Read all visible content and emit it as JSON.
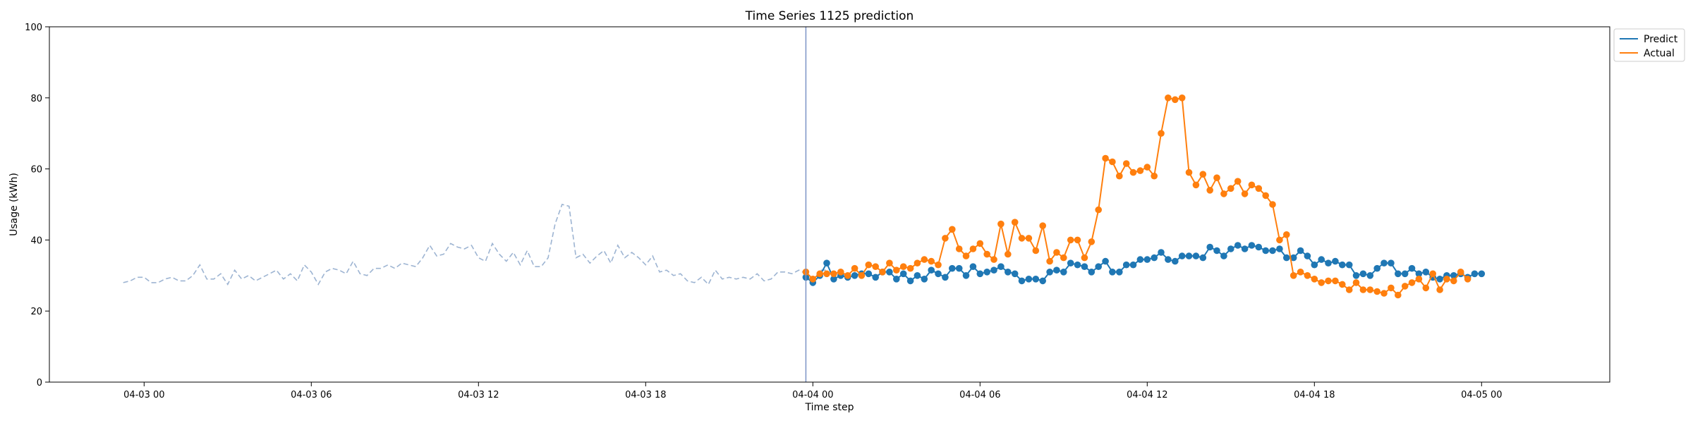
{
  "chart_data": {
    "type": "line",
    "title": "Time Series 1125 prediction",
    "xlabel": "Time step",
    "ylabel": "Usage (kWh)",
    "ylim": [
      0,
      100
    ],
    "yticks": [
      "0",
      "20",
      "40",
      "60",
      "80",
      "100"
    ],
    "xlim": [
      "2025-04-02 20:36",
      "2025-04-05 04:36"
    ],
    "xticks": [
      {
        "t": "2025-04-03 00:00",
        "label": "04-03 00"
      },
      {
        "t": "2025-04-03 06:00",
        "label": "04-03 06"
      },
      {
        "t": "2025-04-03 12:00",
        "label": "04-03 12"
      },
      {
        "t": "2025-04-03 18:00",
        "label": "04-03 18"
      },
      {
        "t": "2025-04-04 00:00",
        "label": "04-04 00"
      },
      {
        "t": "2025-04-04 06:00",
        "label": "04-04 06"
      },
      {
        "t": "2025-04-04 12:00",
        "label": "04-04 12"
      },
      {
        "t": "2025-04-04 18:00",
        "label": "04-04 18"
      },
      {
        "t": "2025-04-05 00:00",
        "label": "04-05 00"
      }
    ],
    "grid": false,
    "legend_position": "top-right",
    "split_time": "2025-04-03 23:45",
    "history": {
      "start": "2025-04-02 23:15",
      "interval_minutes": 15,
      "color": "#9db4d2",
      "style": "dashed",
      "values": [
        28,
        28.5,
        29.5,
        29.5,
        28,
        28,
        29,
        29.5,
        28.5,
        28.5,
        30,
        33,
        29,
        29,
        30.5,
        27.5,
        31.5,
        29,
        30,
        28.5,
        29.5,
        30.5,
        31.5,
        29,
        30.5,
        28.5,
        33,
        31,
        27.5,
        31,
        32,
        31.5,
        30.5,
        34,
        30.5,
        30,
        32,
        32,
        33,
        32,
        33.5,
        33,
        32.5,
        35,
        38.5,
        35.5,
        36,
        39,
        38,
        37.5,
        38.5,
        35,
        34,
        39,
        36,
        34,
        36.5,
        33,
        37,
        32.5,
        32.5,
        35,
        44.5,
        50,
        49.5,
        35,
        36,
        33.5,
        35.5,
        37,
        33.5,
        38.5,
        35,
        36.5,
        35,
        33,
        35.5,
        31,
        31.5,
        30,
        30.5,
        28.5,
        28,
        29.5,
        27.5,
        31.5,
        29,
        29.5,
        29,
        29.5,
        29,
        30.5,
        28.5,
        29,
        31,
        31,
        30.5,
        31.5,
        30.5,
        28,
        31.5,
        31.5
      ]
    },
    "forecast": {
      "start": "2025-04-03 23:45",
      "interval_minutes": 15,
      "series": [
        {
          "name": "Predict",
          "color": "#1f77b4",
          "values": [
            29.5,
            28,
            30,
            33.5,
            29,
            30,
            29.5,
            30,
            30.5,
            30.5,
            29.5,
            31,
            31,
            29,
            30.5,
            28.5,
            30,
            29,
            31.5,
            30.5,
            29.5,
            32,
            32,
            30,
            32.5,
            30.5,
            31,
            31.5,
            32.5,
            31,
            30.5,
            28.5,
            29,
            29,
            28.5,
            31,
            31.5,
            31,
            33.5,
            33,
            32.5,
            31,
            32.5,
            34,
            31,
            31,
            33,
            33,
            34.5,
            34.5,
            35,
            36.5,
            34.5,
            34,
            35.5,
            35.5,
            35.5,
            35,
            38,
            37,
            35.5,
            37.5,
            38.5,
            37.5,
            38.5,
            38,
            37,
            37,
            37.5,
            35,
            35,
            37,
            35.5,
            33,
            34.5,
            33.5,
            34,
            33,
            33,
            30,
            30.5,
            30,
            32,
            33.5,
            33.5,
            30.5,
            30.5,
            32,
            30.5,
            31,
            29.5,
            29,
            30,
            30,
            30.5,
            29.5,
            30.5,
            30.5
          ]
        },
        {
          "name": "Actual",
          "color": "#ff7f0e",
          "values": [
            31,
            29,
            30.5,
            30.5,
            30.5,
            31,
            30,
            32,
            30,
            33,
            32.5,
            31,
            33.5,
            31.5,
            32.5,
            32,
            33.5,
            34.5,
            34,
            33,
            40.5,
            43,
            37.5,
            35.5,
            37.5,
            39,
            36,
            34.5,
            44.5,
            36,
            45,
            40.5,
            40.5,
            37,
            44,
            34,
            36.5,
            35,
            40,
            40,
            35,
            39.5,
            48.5,
            63,
            62,
            58,
            61.5,
            59,
            59.5,
            60.5,
            58,
            70,
            80,
            79.5,
            80,
            59,
            55.5,
            58.5,
            54,
            57.5,
            53,
            54.5,
            56.5,
            53,
            55.5,
            54.5,
            52.5,
            50,
            40,
            41.5,
            30,
            31,
            30,
            29,
            28,
            28.5,
            28.5,
            27.5,
            26,
            28,
            26,
            26,
            25.5,
            25,
            26.5,
            24.5,
            27,
            28,
            29,
            26.5,
            30.5,
            26,
            29,
            28.5,
            31,
            29
          ]
        }
      ]
    }
  }
}
